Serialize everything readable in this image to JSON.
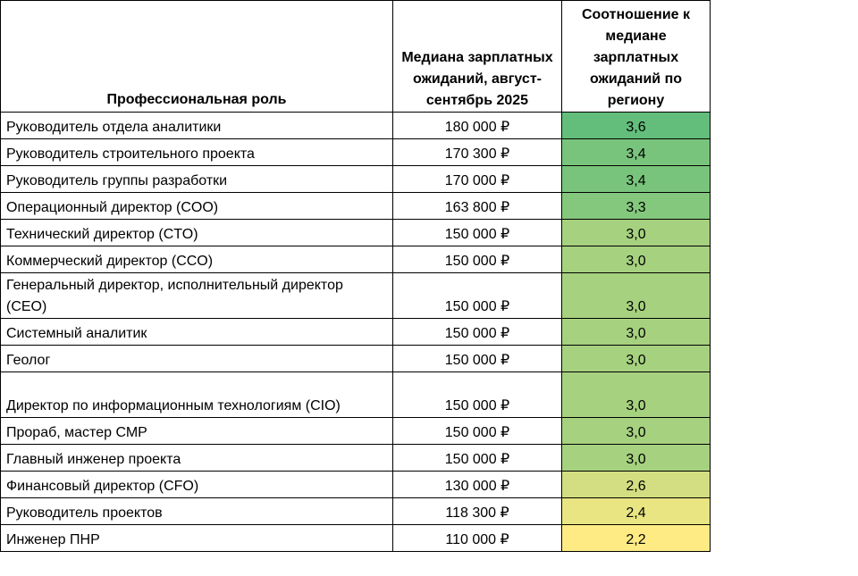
{
  "header": {
    "role": "Профессиональная роль",
    "salary": "Медиана зарплатных ожиданий, август-сентябрь 2025",
    "ratio": "Соотношение к медиане зарплатных ожиданий по региону"
  },
  "colors": {
    "scale_high": "#63be7b",
    "scale_low": "#ffeb84"
  },
  "rows": [
    {
      "role": "Руководитель отдела аналитики",
      "salary": "180 000 ₽",
      "ratio": "3,6",
      "ratio_value": 3.6
    },
    {
      "role": "Руководитель строительного проекта",
      "salary": "170 300 ₽",
      "ratio": "3,4",
      "ratio_value": 3.4
    },
    {
      "role": "Руководитель группы разработки",
      "salary": "170 000 ₽",
      "ratio": "3,4",
      "ratio_value": 3.4
    },
    {
      "role": "Операционный директор (COO)",
      "salary": "163 800 ₽",
      "ratio": "3,3",
      "ratio_value": 3.3
    },
    {
      "role": "Технический директор (CTO)",
      "salary": "150 000 ₽",
      "ratio": "3,0",
      "ratio_value": 3.0
    },
    {
      "role": "Коммерческий директор (CCO)",
      "salary": "150 000 ₽",
      "ratio": "3,0",
      "ratio_value": 3.0
    },
    {
      "role": "Генеральный директор, исполнительный директор (CEO)",
      "salary": "150 000 ₽",
      "ratio": "3,0",
      "ratio_value": 3.0
    },
    {
      "role": "Системный аналитик",
      "salary": "150 000 ₽",
      "ratio": "3,0",
      "ratio_value": 3.0
    },
    {
      "role": "Геолог",
      "salary": "150 000 ₽",
      "ratio": "3,0",
      "ratio_value": 3.0
    },
    {
      "role": "Директор по информационным технологиям (CIO)",
      "salary": "150 000 ₽",
      "ratio": "3,0",
      "ratio_value": 3.0
    },
    {
      "role": "Прораб, мастер СМР",
      "salary": "150 000 ₽",
      "ratio": "3,0",
      "ratio_value": 3.0
    },
    {
      "role": "Главный инженер проекта",
      "salary": "150 000 ₽",
      "ratio": "3,0",
      "ratio_value": 3.0
    },
    {
      "role": "Финансовый директор (CFO)",
      "salary": "130 000 ₽",
      "ratio": "2,6",
      "ratio_value": 2.6
    },
    {
      "role": "Руководитель проектов",
      "salary": "118 300 ₽",
      "ratio": "2,4",
      "ratio_value": 2.4
    },
    {
      "role": "Инженер ПНР",
      "salary": "110 000 ₽",
      "ratio": "2,2",
      "ratio_value": 2.2
    }
  ]
}
